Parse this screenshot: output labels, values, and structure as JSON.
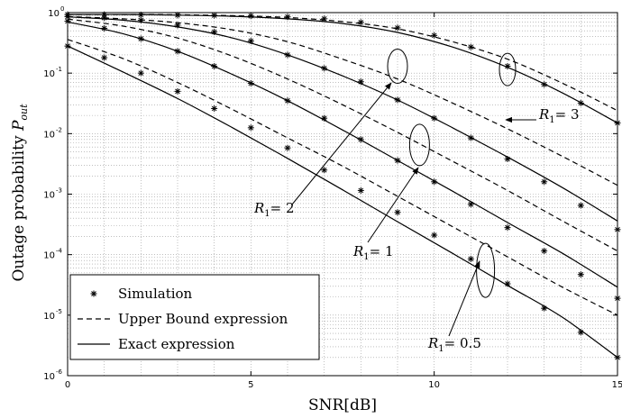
{
  "chart_data": {
    "type": "line",
    "xlabel": "SNR[dB]",
    "ylabel": "Outage probability P_out",
    "ylabel_main": "Outage probability ",
    "ylabel_symbol": "P",
    "ylabel_sub": "out",
    "xlim": [
      0,
      15
    ],
    "ylim": [
      1e-06,
      1
    ],
    "yscale": "log",
    "grid": true,
    "x_ticks": [
      "0",
      "5",
      "10",
      "15"
    ],
    "y_ticks": [
      {
        "base": "10",
        "exp": "0"
      },
      {
        "base": "10",
        "exp": "-1"
      },
      {
        "base": "10",
        "exp": "-2"
      },
      {
        "base": "10",
        "exp": "-3"
      },
      {
        "base": "10",
        "exp": "-4"
      },
      {
        "base": "10",
        "exp": "-5"
      },
      {
        "base": "10",
        "exp": "-6"
      }
    ],
    "legend": {
      "placement": "bottom-left",
      "entries": [
        {
          "label": "Simulation",
          "style": "marker"
        },
        {
          "label": "Upper Bound expression",
          "style": "dashed"
        },
        {
          "label": "Exact expression",
          "style": "solid"
        }
      ]
    },
    "series": [
      {
        "group": "R1=0.5",
        "style": "solid",
        "x": [
          0,
          1.5,
          3,
          4.5,
          6,
          7.5,
          9,
          10.5,
          12,
          13.5,
          15
        ],
        "y": [
          0.28,
          0.105,
          0.038,
          0.0125,
          0.0039,
          0.00118,
          0.00035,
          0.000105,
          3.1e-05,
          9.2e-06,
          2e-06
        ]
      },
      {
        "group": "R1=0.5",
        "style": "dashed",
        "x": [
          0,
          1.5,
          3,
          4.5,
          6,
          7.5,
          9,
          10.5,
          12,
          13.5,
          15
        ],
        "y": [
          0.36,
          0.175,
          0.07,
          0.025,
          0.0085,
          0.0029,
          0.00092,
          0.00029,
          9.2e-05,
          2.9e-05,
          1e-05
        ]
      },
      {
        "group": "R1=1",
        "style": "solid",
        "x": [
          0,
          1.5,
          3,
          4.5,
          6,
          7.5,
          9,
          10.5,
          12,
          13.5,
          15
        ],
        "y": [
          0.7,
          0.45,
          0.23,
          0.095,
          0.035,
          0.0115,
          0.0036,
          0.00112,
          0.00034,
          0.000105,
          2.9e-05
        ]
      },
      {
        "group": "R1=1",
        "style": "dashed",
        "x": [
          0,
          1.5,
          3,
          4.5,
          6,
          7.5,
          9,
          10.5,
          12,
          13.5,
          15
        ],
        "y": [
          0.78,
          0.6,
          0.38,
          0.19,
          0.08,
          0.03,
          0.0105,
          0.0035,
          0.00115,
          0.00036,
          0.000115
        ]
      },
      {
        "group": "R1=2",
        "style": "solid",
        "x": [
          0,
          1.5,
          3,
          4.5,
          6,
          7.5,
          9,
          10.5,
          12,
          13.5,
          15
        ],
        "y": [
          0.85,
          0.75,
          0.58,
          0.38,
          0.2,
          0.09,
          0.036,
          0.0125,
          0.0041,
          0.00128,
          0.00036
        ]
      },
      {
        "group": "R1=2",
        "style": "dashed",
        "x": [
          0,
          1.5,
          3,
          4.5,
          6,
          7.5,
          9,
          10.5,
          12,
          13.5,
          15
        ],
        "y": [
          0.86,
          0.79,
          0.68,
          0.52,
          0.33,
          0.17,
          0.08,
          0.032,
          0.012,
          0.0042,
          0.0014
        ]
      },
      {
        "group": "R1=3",
        "style": "solid",
        "x": [
          0,
          1.5,
          3,
          4.5,
          6,
          7.5,
          9,
          10.5,
          12,
          13.5,
          15
        ],
        "y": [
          0.93,
          0.93,
          0.91,
          0.87,
          0.79,
          0.66,
          0.47,
          0.27,
          0.125,
          0.047,
          0.015
        ]
      },
      {
        "group": "R1=3",
        "style": "dashed",
        "x": [
          0,
          1.5,
          3,
          4.5,
          6,
          7.5,
          9,
          10.5,
          12,
          13.5,
          15
        ],
        "y": [
          0.93,
          0.93,
          0.92,
          0.89,
          0.83,
          0.71,
          0.54,
          0.33,
          0.17,
          0.068,
          0.024
        ]
      },
      {
        "group": "Simulation",
        "style": "marker",
        "on": "R1=0.5",
        "x": [
          0,
          1,
          2,
          3,
          4,
          5,
          6,
          7,
          8,
          9,
          10,
          11,
          12,
          13,
          14,
          15
        ],
        "y": [
          0.28,
          0.18,
          0.1,
          0.05,
          0.026,
          0.0125,
          0.0058,
          0.0025,
          0.00115,
          0.0005,
          0.00021,
          8.5e-05,
          3.3e-05,
          1.3e-05,
          5.2e-06,
          2e-06
        ]
      },
      {
        "group": "Simulation",
        "style": "marker",
        "on": "R1=1",
        "x": [
          0,
          1,
          2,
          3,
          4,
          5,
          6,
          7,
          8,
          9,
          10,
          11,
          12,
          13,
          14,
          15
        ],
        "y": [
          0.72,
          0.55,
          0.37,
          0.23,
          0.13,
          0.068,
          0.035,
          0.018,
          0.008,
          0.0036,
          0.0016,
          0.00068,
          0.00028,
          0.000115,
          4.7e-05,
          1.9e-05
        ]
      },
      {
        "group": "Simulation",
        "style": "marker",
        "on": "R1=2",
        "x": [
          0,
          1,
          2,
          3,
          4,
          5,
          6,
          7,
          8,
          9,
          10,
          11,
          12,
          13,
          14,
          15
        ],
        "y": [
          0.86,
          0.82,
          0.75,
          0.62,
          0.48,
          0.34,
          0.2,
          0.12,
          0.072,
          0.036,
          0.018,
          0.0085,
          0.0038,
          0.0016,
          0.00065,
          0.00026
        ]
      },
      {
        "group": "Simulation",
        "style": "marker",
        "on": "R1=3",
        "x": [
          0,
          1,
          2,
          3,
          4,
          5,
          6,
          7,
          8,
          9,
          10,
          11,
          12,
          13,
          14,
          15
        ],
        "y": [
          0.93,
          0.93,
          0.92,
          0.91,
          0.9,
          0.88,
          0.85,
          0.79,
          0.69,
          0.56,
          0.42,
          0.27,
          0.13,
          0.065,
          0.032,
          0.015
        ]
      }
    ],
    "annotations": [
      {
        "prefix": "R",
        "sub": "1",
        "suffix": "= 3",
        "target": [
          12,
          0.12
        ]
      },
      {
        "prefix": "R",
        "sub": "1",
        "suffix": "= 2",
        "target": [
          9,
          0.13
        ]
      },
      {
        "prefix": "R",
        "sub": "1",
        "suffix": "= 1",
        "target": [
          9.6,
          0.0065
        ]
      },
      {
        "prefix": "R",
        "sub": "1",
        "suffix": "= 0.5",
        "target": [
          11.4,
          5.5e-05
        ]
      }
    ]
  }
}
